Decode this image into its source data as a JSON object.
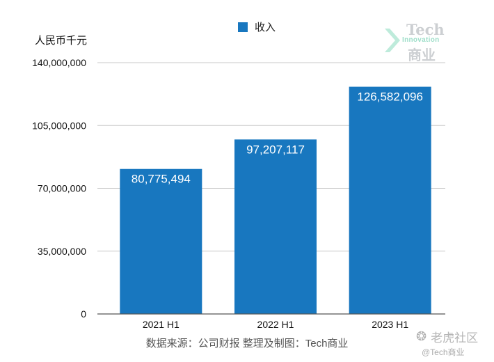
{
  "legend": {
    "label": "收入",
    "color": "#1877bf"
  },
  "unit_label": "人民币千元",
  "logo": {
    "title": "Tech",
    "sub": "Innovation",
    "cn": "商业"
  },
  "source_text": "数据来源：公司财报 整理及制图：Tech商业",
  "watermark": {
    "icon": "paw-icon",
    "name": "老虎社区",
    "handle": "@Tech商业"
  },
  "chart_data": {
    "type": "bar",
    "title": "",
    "xlabel": "",
    "ylabel": "人民币千元",
    "categories": [
      "2021 H1",
      "2022 H1",
      "2023 H1"
    ],
    "series": [
      {
        "name": "收入",
        "values": [
          80775494,
          97207117,
          126582096
        ]
      }
    ],
    "value_labels": [
      "80,775,494",
      "97,207,117",
      "126,582,096"
    ],
    "y_ticks": [
      0,
      35000000,
      70000000,
      105000000,
      140000000
    ],
    "y_tick_labels": [
      "0",
      "35,000,000",
      "70,000,000",
      "105,000,000",
      "140,000,000"
    ],
    "ylim": [
      0,
      140000000
    ],
    "grid": true,
    "bar_color": "#1877bf",
    "legend_position": "top"
  }
}
